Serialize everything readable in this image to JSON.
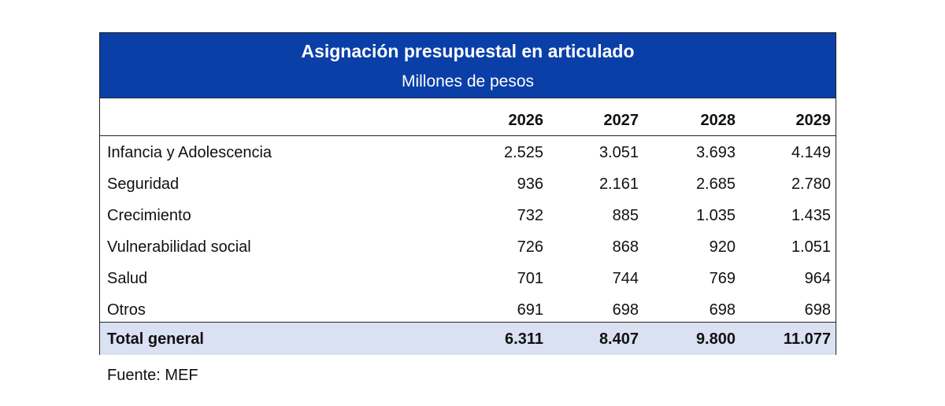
{
  "title": "Asignación presupuestal en articulado",
  "subtitle": "Millones de pesos",
  "years": [
    "2026",
    "2027",
    "2028",
    "2029"
  ],
  "rows": [
    {
      "label": "Infancia y Adolescencia",
      "values": [
        "2.525",
        "3.051",
        "3.693",
        "4.149"
      ]
    },
    {
      "label": "Seguridad",
      "values": [
        "936",
        "2.161",
        "2.685",
        "2.780"
      ]
    },
    {
      "label": "Crecimiento",
      "values": [
        "732",
        "885",
        "1.035",
        "1.435"
      ]
    },
    {
      "label": "Vulnerabilidad social",
      "values": [
        "726",
        "868",
        "920",
        "1.051"
      ]
    },
    {
      "label": "Salud",
      "values": [
        "701",
        "744",
        "769",
        "964"
      ]
    },
    {
      "label": "Otros",
      "values": [
        "691",
        "698",
        "698",
        "698"
      ]
    }
  ],
  "total": {
    "label": "Total general",
    "values": [
      "6.311",
      "8.407",
      "9.800",
      "11.077"
    ]
  },
  "source": "Fuente: MEF",
  "colors": {
    "header_bg": "#0a3fa8",
    "total_bg": "#dae1f2"
  }
}
